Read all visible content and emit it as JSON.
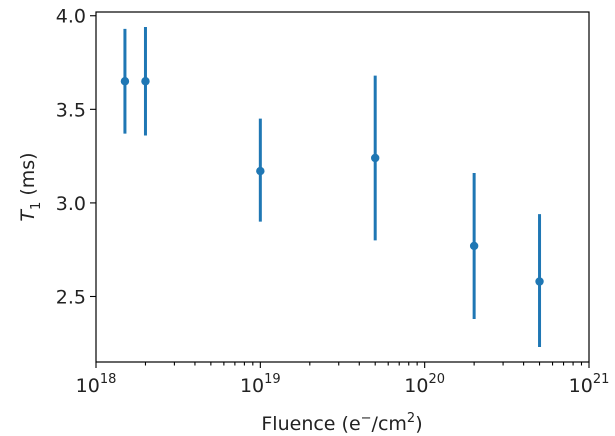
{
  "chart_data": {
    "type": "scatter",
    "x_scale": "log",
    "xlim": [
      1e+18,
      1e+21
    ],
    "ylim": [
      2.15,
      4.02
    ],
    "xlabel": "Fluence (e⁻/cm²)",
    "ylabel": "T1 (ms)",
    "xlabel_parts": {
      "pre": "Fluence (e",
      "sup1": "−",
      "mid": "/cm",
      "sup2": "2",
      "post": ")"
    },
    "ylabel_parts": {
      "main": "T",
      "sub": "1",
      "unit": " (ms)"
    },
    "x_ticks": [
      {
        "value": 1e+18,
        "base": "10",
        "exp": "18"
      },
      {
        "value": 1e+19,
        "base": "10",
        "exp": "19"
      },
      {
        "value": 1e+20,
        "base": "10",
        "exp": "20"
      },
      {
        "value": 1e+21,
        "base": "10",
        "exp": "21"
      }
    ],
    "y_ticks": [
      {
        "value": 2.5,
        "label": "2.5"
      },
      {
        "value": 3.0,
        "label": "3.0"
      },
      {
        "value": 3.5,
        "label": "3.5"
      },
      {
        "value": 4.0,
        "label": "4.0"
      }
    ],
    "points": [
      {
        "x": 1.5e+18,
        "y": 3.65,
        "ylo": 3.37,
        "yhi": 3.93
      },
      {
        "x": 2e+18,
        "y": 3.65,
        "ylo": 3.36,
        "yhi": 3.94
      },
      {
        "x": 1e+19,
        "y": 3.17,
        "ylo": 2.9,
        "yhi": 3.45
      },
      {
        "x": 5e+19,
        "y": 3.24,
        "ylo": 2.8,
        "yhi": 3.68
      },
      {
        "x": 2e+20,
        "y": 2.77,
        "ylo": 2.38,
        "yhi": 3.16
      },
      {
        "x": 5e+20,
        "y": 2.58,
        "ylo": 2.23,
        "yhi": 2.94
      }
    ],
    "color": "#1f77b4",
    "grid": false,
    "legend": "none"
  }
}
